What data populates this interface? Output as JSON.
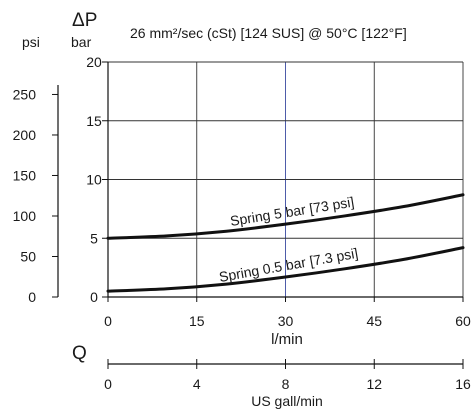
{
  "chart_data": {
    "type": "line",
    "title": "26 mm²/sec (cSt) [124 SUS] @ 50°C [122°F]",
    "delta_symbol": "ΔP",
    "flow_symbol": "Q",
    "ylabel_left": "psi",
    "ylabel_right": "bar",
    "xlabel": "l/min",
    "xlabel2": "US gall/min",
    "xlim": [
      0,
      60
    ],
    "ylim": [
      0,
      20
    ],
    "x2lim": [
      0,
      16
    ],
    "psi_lim": [
      0,
      290.075
    ],
    "x_ticks": [
      "0",
      "15",
      "30",
      "45",
      "60"
    ],
    "y_ticks": [
      "0",
      "5",
      "10",
      "15",
      "20"
    ],
    "x2_ticks": [
      "0",
      "4",
      "8",
      "12",
      "16"
    ],
    "psi_ticks": [
      "0",
      "50",
      "100",
      "150",
      "200",
      "250"
    ],
    "grid": true,
    "series": [
      {
        "name": "Spring 5 bar [73 psi]",
        "x": [
          0,
          10,
          20,
          30,
          40,
          50,
          60
        ],
        "y": [
          5.0,
          5.2,
          5.6,
          6.2,
          6.9,
          7.7,
          8.7
        ]
      },
      {
        "name": "Spring 0.5 bar [7.3 psi]",
        "x": [
          0,
          10,
          20,
          30,
          40,
          50,
          60
        ],
        "y": [
          0.5,
          0.7,
          1.1,
          1.7,
          2.4,
          3.2,
          4.2
        ]
      }
    ]
  }
}
